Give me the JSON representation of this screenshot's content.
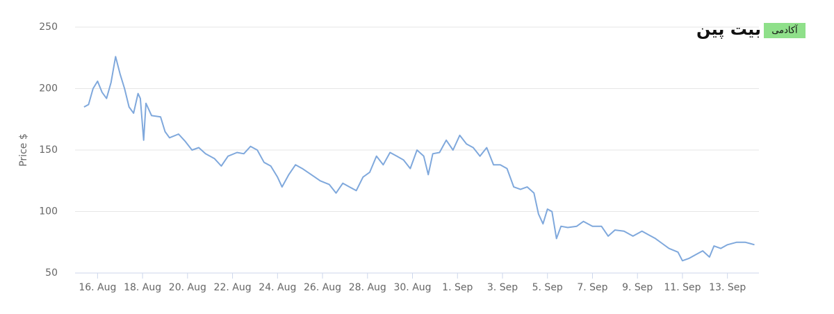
{
  "logo": {
    "name": "بیت پین",
    "tag": "آکادمی"
  },
  "chart_data": {
    "type": "line",
    "y_label": "Price $",
    "color": "#7fa8dc",
    "grid": true,
    "x": [
      15.4,
      15.6,
      15.8,
      16.0,
      16.2,
      16.4,
      16.6,
      16.8,
      17.0,
      17.2,
      17.4,
      17.6,
      17.8,
      17.9,
      18.05,
      18.15,
      18.4,
      18.8,
      19.0,
      19.2,
      19.6,
      19.9,
      20.2,
      20.5,
      20.8,
      21.2,
      21.5,
      21.8,
      22.2,
      22.5,
      22.8,
      23.1,
      23.4,
      23.7,
      24.0,
      24.2,
      24.5,
      24.8,
      25.1,
      25.5,
      25.9,
      26.3,
      26.6,
      26.9,
      27.2,
      27.5,
      27.8,
      28.1,
      28.4,
      28.7,
      29.0,
      29.3,
      29.6,
      29.9,
      30.2,
      30.5,
      30.7,
      30.9,
      31.2,
      31.5,
      31.8,
      32.1,
      32.4,
      32.7,
      33.0,
      33.3,
      33.6,
      33.9,
      34.2,
      34.5,
      34.8,
      35.1,
      35.4,
      35.6,
      35.8,
      36.0,
      36.2,
      36.4,
      36.6,
      36.9,
      37.3,
      37.6,
      38.0,
      38.4,
      38.7,
      39.0,
      39.4,
      39.8,
      40.2,
      40.5,
      40.8,
      41.1,
      41.4,
      41.8,
      42.0,
      42.3,
      42.6,
      42.9,
      43.2,
      43.4,
      43.7,
      44.0,
      44.4,
      44.8,
      45.0,
      45.2
    ],
    "values": [
      185,
      187,
      200,
      206,
      197,
      192,
      205,
      226,
      212,
      200,
      185,
      180,
      196,
      192,
      158,
      188,
      178,
      177,
      165,
      160,
      163,
      157,
      150,
      152,
      147,
      143,
      137,
      145,
      148,
      147,
      153,
      150,
      140,
      137,
      128,
      120,
      130,
      138,
      135,
      130,
      125,
      122,
      115,
      123,
      120,
      117,
      128,
      132,
      145,
      138,
      148,
      145,
      142,
      135,
      150,
      145,
      130,
      147,
      148,
      158,
      150,
      162,
      155,
      152,
      145,
      152,
      138,
      138,
      135,
      120,
      118,
      120,
      115,
      98,
      90,
      102,
      100,
      78,
      88,
      87,
      88,
      92,
      88,
      88,
      80,
      85,
      84,
      80,
      84,
      81,
      78,
      74,
      70,
      67,
      60,
      62,
      65,
      68,
      63,
      72,
      70,
      73,
      75,
      75,
      74,
      73
    ],
    "xlim": [
      15,
      45.4
    ],
    "ylim": [
      50,
      250
    ],
    "xticks": [
      {
        "value": 16,
        "label": "16. Aug"
      },
      {
        "value": 18,
        "label": "18. Aug"
      },
      {
        "value": 20,
        "label": "20. Aug"
      },
      {
        "value": 22,
        "label": "22. Aug"
      },
      {
        "value": 24,
        "label": "24. Aug"
      },
      {
        "value": 26,
        "label": "26. Aug"
      },
      {
        "value": 28,
        "label": "28. Aug"
      },
      {
        "value": 30,
        "label": "30. Aug"
      },
      {
        "value": 32,
        "label": "1. Sep"
      },
      {
        "value": 34,
        "label": "3. Sep"
      },
      {
        "value": 36,
        "label": "5. Sep"
      },
      {
        "value": 38,
        "label": "7. Sep"
      },
      {
        "value": 40,
        "label": "9. Sep"
      },
      {
        "value": 42,
        "label": "11. Sep"
      },
      {
        "value": 44,
        "label": "13. Sep"
      }
    ],
    "yticks": [
      50,
      100,
      150,
      200,
      250
    ]
  }
}
